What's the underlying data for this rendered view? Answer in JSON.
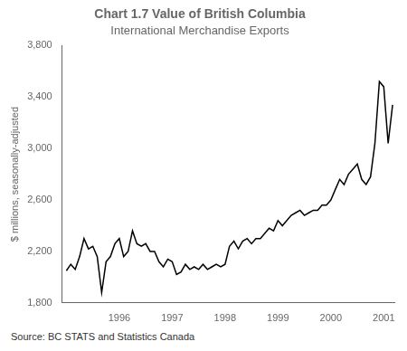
{
  "chart_data": {
    "type": "line",
    "title": "Chart 1.7 Value of British Columbia",
    "subtitle": "International Merchandise Exports",
    "y_label": "$ millions, seasonally-adjusted",
    "annotations": [
      "Source: BC STATS and Statistics Canada"
    ],
    "color": "#000000",
    "grid": false,
    "xlim": [
      1994.92,
      2001.2
    ],
    "xticks": [
      1996,
      1997,
      1998,
      1999,
      2000,
      2001
    ],
    "ylim": [
      1800,
      3800
    ],
    "yticks": [
      {
        "value": 1800,
        "label": "1,800"
      },
      {
        "value": 2200,
        "label": "2,200"
      },
      {
        "value": 2600,
        "label": "2,600"
      },
      {
        "value": 3000,
        "label": "3,000"
      },
      {
        "value": 3400,
        "label": "3,400"
      },
      {
        "value": 3800,
        "label": "3,800"
      }
    ],
    "x": [
      1995.0,
      1995.083,
      1995.167,
      1995.25,
      1995.333,
      1995.417,
      1995.5,
      1995.583,
      1995.667,
      1995.75,
      1995.833,
      1995.917,
      1996.0,
      1996.083,
      1996.167,
      1996.25,
      1996.333,
      1996.417,
      1996.5,
      1996.583,
      1996.667,
      1996.75,
      1996.833,
      1996.917,
      1997.0,
      1997.083,
      1997.167,
      1997.25,
      1997.333,
      1997.417,
      1997.5,
      1997.583,
      1997.667,
      1997.75,
      1997.833,
      1997.917,
      1998.0,
      1998.083,
      1998.167,
      1998.25,
      1998.333,
      1998.417,
      1998.5,
      1998.583,
      1998.667,
      1998.75,
      1998.833,
      1998.917,
      1999.0,
      1999.083,
      1999.167,
      1999.25,
      1999.333,
      1999.417,
      1999.5,
      1999.583,
      1999.667,
      1999.75,
      1999.833,
      1999.917,
      2000.0,
      2000.083,
      2000.167,
      2000.25,
      2000.333,
      2000.417,
      2000.5,
      2000.583,
      2000.667,
      2000.75,
      2000.833,
      2000.917,
      2001.0,
      2001.083,
      2001.167
    ],
    "values": [
      2050,
      2100,
      2060,
      2160,
      2300,
      2220,
      2240,
      2160,
      1880,
      2120,
      2160,
      2260,
      2300,
      2160,
      2200,
      2360,
      2260,
      2240,
      2260,
      2200,
      2200,
      2120,
      2080,
      2140,
      2120,
      2020,
      2040,
      2100,
      2060,
      2080,
      2060,
      2100,
      2060,
      2080,
      2100,
      2080,
      2100,
      2240,
      2280,
      2220,
      2280,
      2300,
      2260,
      2300,
      2300,
      2340,
      2380,
      2360,
      2440,
      2400,
      2440,
      2480,
      2500,
      2520,
      2480,
      2500,
      2520,
      2520,
      2560,
      2560,
      2600,
      2680,
      2760,
      2720,
      2800,
      2840,
      2880,
      2760,
      2720,
      2780,
      3040,
      3520,
      3480,
      3040,
      3340
    ]
  }
}
